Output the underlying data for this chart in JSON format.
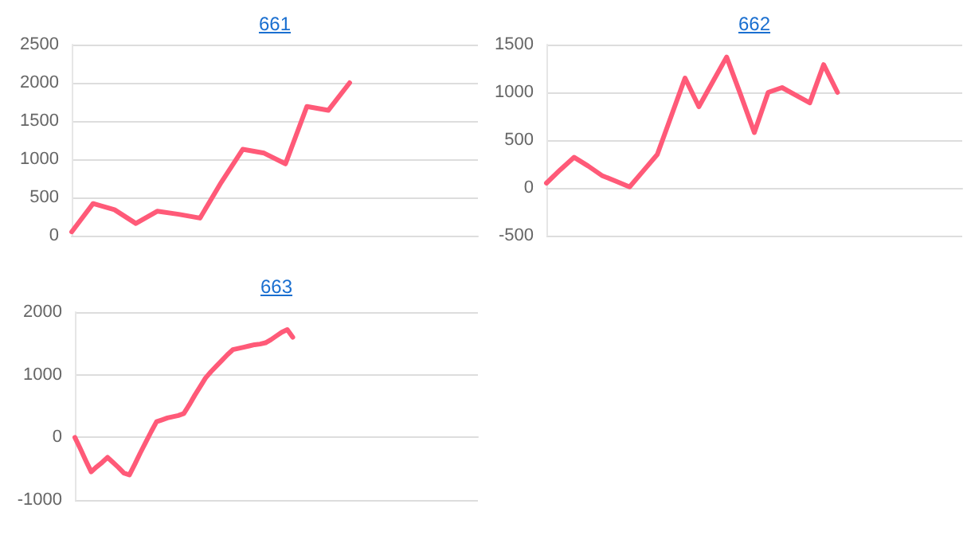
{
  "chart_data": [
    {
      "type": "line",
      "title": "661",
      "categories": [
        null,
        null,
        null,
        null,
        null,
        null,
        null,
        null,
        null,
        null,
        null,
        null,
        null,
        null,
        null,
        null,
        null,
        null,
        null,
        null
      ],
      "series": [
        {
          "color": "#ff5a78",
          "values": [
            50,
            420,
            340,
            160,
            320,
            280,
            230,
            700,
            1130,
            1080,
            940,
            1690,
            1640,
            2000,
            null,
            null,
            null,
            null,
            null,
            null
          ]
        }
      ],
      "ylim": [
        0,
        2500
      ],
      "yticks": [
        0,
        500,
        1000,
        1500,
        2000,
        2500
      ],
      "grid": "y",
      "marker": "none",
      "line_style": "solid"
    },
    {
      "type": "line",
      "title": "662",
      "categories": [
        null,
        null,
        null,
        null,
        null,
        null,
        null,
        null,
        null,
        null,
        null,
        null,
        null,
        null,
        null,
        null,
        null,
        null,
        null,
        null,
        null,
        null,
        null,
        null,
        null,
        null,
        null,
        null,
        null,
        null,
        null
      ],
      "series": [
        {
          "color": "#ff5a78",
          "values": [
            50,
            190,
            320,
            230,
            130,
            70,
            10,
            180,
            350,
            750,
            1150,
            850,
            1110,
            1370,
            980,
            580,
            1000,
            1050,
            970,
            890,
            1290,
            1000,
            null,
            null,
            null,
            null,
            null,
            null,
            null,
            null,
            null
          ]
        }
      ],
      "ylim": [
        -500,
        1500
      ],
      "yticks": [
        -500,
        0,
        500,
        1000,
        1500
      ],
      "grid": "y",
      "marker": "none",
      "line_style": "solid"
    },
    {
      "type": "line",
      "title": "663",
      "categories": [
        null,
        null,
        null,
        null,
        null,
        null,
        null,
        null,
        null,
        null,
        null,
        null,
        null,
        null,
        null,
        null,
        null,
        null,
        null,
        null,
        null,
        null,
        null,
        null,
        null,
        null,
        null,
        null,
        null,
        null,
        null,
        null,
        null,
        null,
        null,
        null,
        null,
        null,
        null,
        null,
        null,
        null,
        null,
        null,
        null,
        null,
        null,
        null,
        null,
        null,
        null,
        null,
        null,
        null,
        null,
        null,
        null,
        null,
        null,
        null,
        null,
        null,
        null,
        null,
        null,
        null,
        null,
        null,
        null,
        null,
        null,
        null,
        null,
        null,
        null
      ],
      "series": [
        {
          "color": "#ff5a78",
          "values": [
            0,
            -180,
            -370,
            -550,
            -470,
            -400,
            -320,
            -400,
            -480,
            -570,
            -600,
            -430,
            -250,
            -80,
            90,
            250,
            280,
            310,
            330,
            350,
            380,
            520,
            670,
            810,
            950,
            1050,
            1140,
            1230,
            1320,
            1400,
            1420,
            1440,
            1460,
            1480,
            1490,
            1510,
            1560,
            1620,
            1680,
            1720,
            1600,
            null,
            null,
            null,
            null,
            null,
            null,
            null,
            null,
            null,
            null,
            null,
            null,
            null,
            null,
            null,
            null,
            null,
            null,
            null,
            null,
            null,
            null,
            null,
            null,
            null,
            null,
            null,
            null,
            null,
            null,
            null,
            null,
            null,
            null
          ]
        }
      ],
      "ylim": [
        -1000,
        2000
      ],
      "yticks": [
        -1000,
        0,
        1000,
        2000
      ],
      "grid": "y",
      "marker": "none",
      "line_style": "solid"
    }
  ]
}
